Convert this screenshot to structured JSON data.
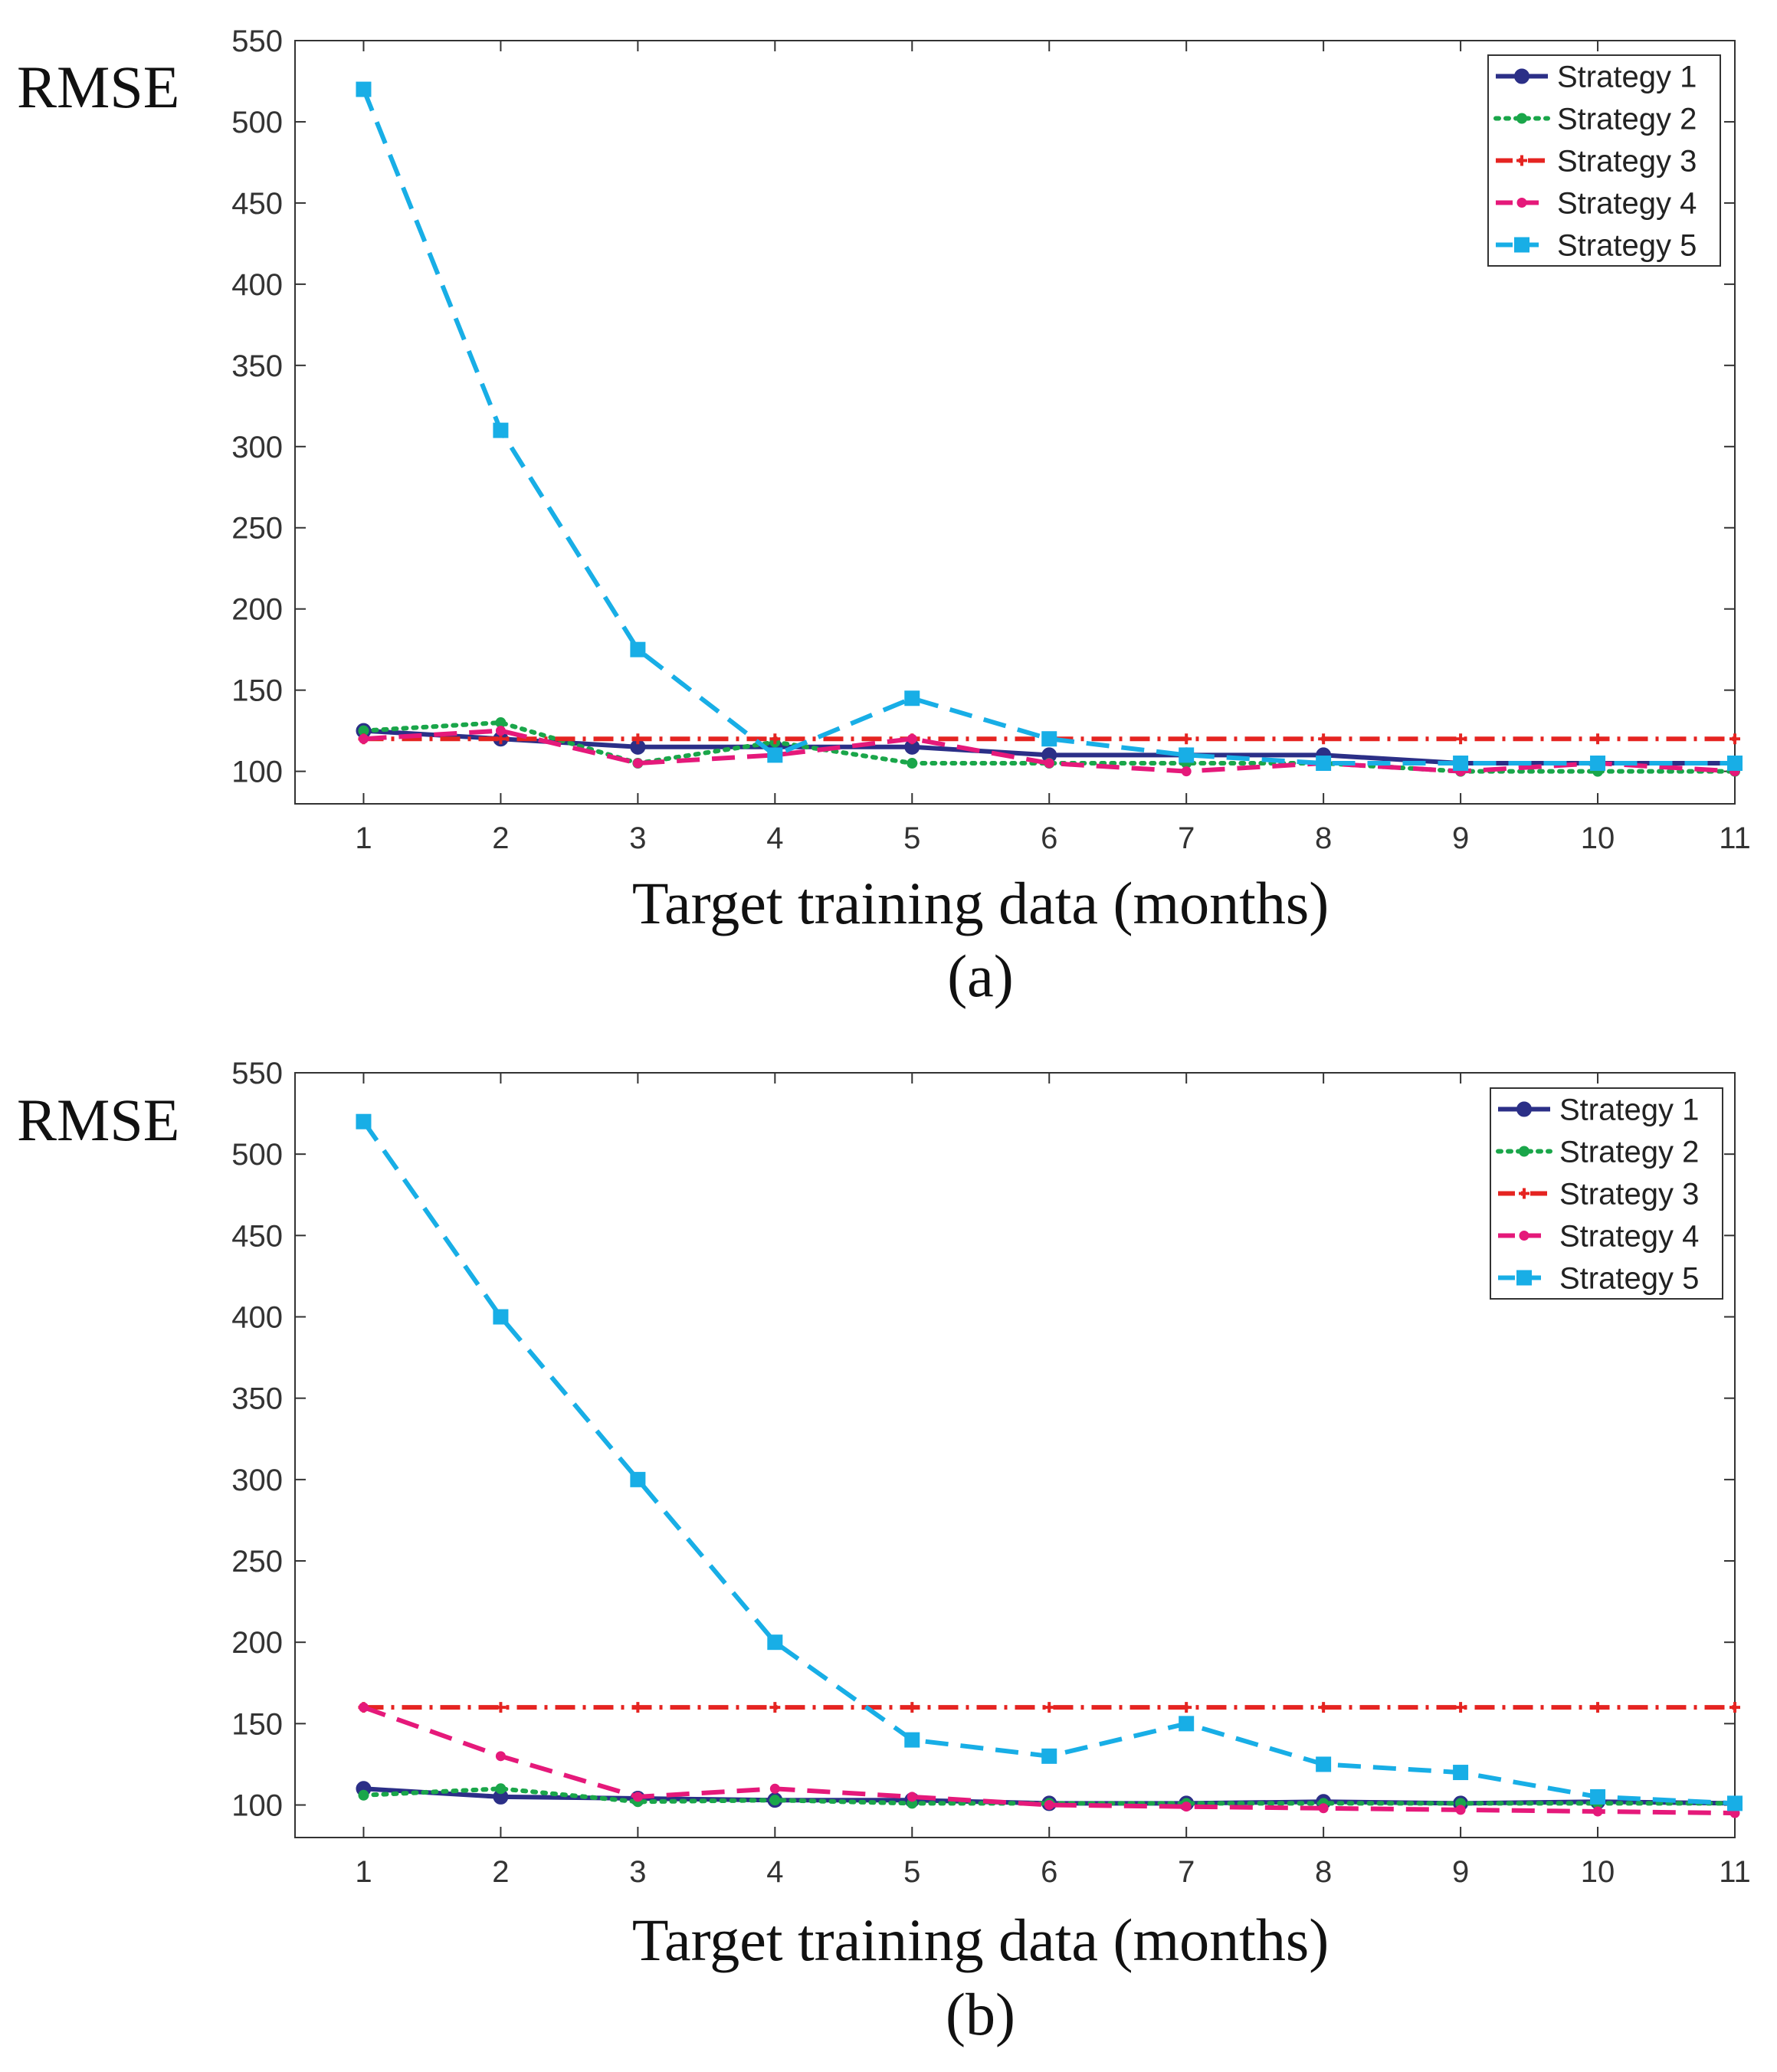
{
  "chart_data": [
    {
      "panel": "(a)",
      "type": "line",
      "title": "",
      "xlabel": "Target training data (months)",
      "ylabel": "RMSE",
      "caption": "(a)",
      "x": [
        1,
        2,
        3,
        4,
        5,
        6,
        7,
        8,
        9,
        10,
        11
      ],
      "xlim": [
        0.5,
        11
      ],
      "ylim": [
        80,
        550
      ],
      "xticks": [
        1,
        2,
        3,
        4,
        5,
        6,
        7,
        8,
        9,
        10,
        11
      ],
      "yticks": [
        100,
        150,
        200,
        250,
        300,
        350,
        400,
        450,
        500,
        550
      ],
      "legend_position": "top-right",
      "series": [
        {
          "name": "Strategy 1",
          "color": "#2b2f87",
          "dash": "solid",
          "marker": "circle",
          "values": [
            125,
            120,
            115,
            115,
            115,
            110,
            110,
            110,
            105,
            105,
            105
          ]
        },
        {
          "name": "Strategy 2",
          "color": "#1aa64a",
          "dash": "dotted",
          "marker": "star",
          "values": [
            125,
            130,
            105,
            118,
            105,
            105,
            105,
            105,
            100,
            100,
            100
          ]
        },
        {
          "name": "Strategy 3",
          "color": "#e52421",
          "dash": "dashdot",
          "marker": "plus",
          "values": [
            120,
            120,
            120,
            120,
            120,
            120,
            120,
            120,
            120,
            120,
            120
          ]
        },
        {
          "name": "Strategy 4",
          "color": "#e5197a",
          "dash": "dashed",
          "marker": "dot",
          "values": [
            120,
            125,
            105,
            110,
            120,
            105,
            100,
            105,
            100,
            105,
            100
          ]
        },
        {
          "name": "Strategy 5",
          "color": "#18aee6",
          "dash": "dashed",
          "marker": "square",
          "values": [
            520,
            310,
            175,
            110,
            145,
            120,
            110,
            105,
            105,
            105,
            105
          ]
        }
      ]
    },
    {
      "panel": "(b)",
      "type": "line",
      "title": "",
      "xlabel": "Target training data (months)",
      "ylabel": "RMSE",
      "caption": "(b)",
      "x": [
        1,
        2,
        3,
        4,
        5,
        6,
        7,
        8,
        9,
        10,
        11
      ],
      "xlim": [
        0.5,
        11
      ],
      "ylim": [
        80,
        550
      ],
      "xticks": [
        1,
        2,
        3,
        4,
        5,
        6,
        7,
        8,
        9,
        10,
        11
      ],
      "yticks": [
        100,
        150,
        200,
        250,
        300,
        350,
        400,
        450,
        500,
        550
      ],
      "legend_position": "top-right",
      "series": [
        {
          "name": "Strategy 1",
          "color": "#2b2f87",
          "dash": "solid",
          "marker": "circle",
          "values": [
            110,
            105,
            104,
            103,
            103,
            101,
            101,
            102,
            101,
            102,
            101
          ]
        },
        {
          "name": "Strategy 2",
          "color": "#1aa64a",
          "dash": "dotted",
          "marker": "star",
          "values": [
            106,
            110,
            102,
            103,
            101,
            101,
            101,
            101,
            101,
            101,
            101
          ]
        },
        {
          "name": "Strategy 3",
          "color": "#e52421",
          "dash": "dashdot",
          "marker": "plus",
          "values": [
            160,
            160,
            160,
            160,
            160,
            160,
            160,
            160,
            160,
            160,
            160
          ]
        },
        {
          "name": "Strategy 4",
          "color": "#e5197a",
          "dash": "dashed",
          "marker": "dot",
          "values": [
            160,
            130,
            105,
            110,
            105,
            100,
            99,
            98,
            97,
            96,
            95
          ]
        },
        {
          "name": "Strategy 5",
          "color": "#18aee6",
          "dash": "dashed",
          "marker": "square",
          "values": [
            520,
            400,
            300,
            200,
            140,
            130,
            150,
            125,
            120,
            105,
            101
          ]
        }
      ]
    }
  ]
}
